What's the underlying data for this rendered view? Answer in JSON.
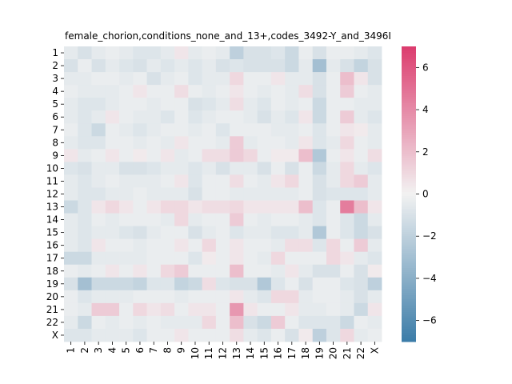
{
  "chart_data": {
    "type": "heatmap",
    "title": "female_chorion,conditions_none_and_13+,codes_3492-Y_and_3496I",
    "xlabel": "",
    "ylabel": "",
    "row_labels": [
      "1",
      "2",
      "3",
      "4",
      "5",
      "6",
      "7",
      "8",
      "9",
      "10",
      "11",
      "12",
      "13",
      "14",
      "15",
      "16",
      "17",
      "18",
      "19",
      "20",
      "21",
      "22",
      "X"
    ],
    "col_labels": [
      "1",
      "2",
      "3",
      "4",
      "5",
      "6",
      "7",
      "8",
      "9",
      "10",
      "11",
      "12",
      "13",
      "14",
      "15",
      "16",
      "17",
      "18",
      "19",
      "20",
      "21",
      "22",
      "X"
    ],
    "colorbar": {
      "vmin": -7,
      "vmax": 7,
      "ticks": [
        -6,
        -4,
        -2,
        0,
        2,
        4,
        6
      ],
      "tick_labels": [
        "−6",
        "−4",
        "−2",
        "0",
        "2",
        "4",
        "6"
      ],
      "low_color": "#3b7ca8",
      "mid_color": "#f2f2f2",
      "high_color": "#dc3c6e"
    },
    "values": [
      [
        -0.5,
        -1.0,
        -0.5,
        -0.3,
        -0.5,
        -0.8,
        -0.8,
        -0.5,
        0.5,
        -0.5,
        -0.3,
        -0.5,
        -2.0,
        -1.0,
        -1.0,
        -0.8,
        -1.5,
        -0.3,
        -1.0,
        -0.3,
        -0.3,
        -0.5,
        -0.8
      ],
      [
        -1.0,
        -0.3,
        -1.0,
        -0.5,
        -0.8,
        -1.0,
        -0.5,
        -0.8,
        -0.5,
        -0.8,
        -0.5,
        -1.0,
        -0.8,
        -1.0,
        -1.0,
        -1.0,
        -1.5,
        -0.5,
        -3.0,
        -0.5,
        -1.0,
        -1.8,
        -1.0
      ],
      [
        -0.5,
        -0.5,
        -0.3,
        -0.3,
        -0.5,
        -0.3,
        -1.0,
        -0.5,
        -0.3,
        -0.8,
        -0.5,
        -0.5,
        1.0,
        -0.3,
        -0.3,
        0.5,
        -0.5,
        -0.5,
        -1.0,
        -0.3,
        2.0,
        0.5,
        -1.0
      ],
      [
        -0.3,
        -0.5,
        -0.5,
        -0.5,
        -0.3,
        0.5,
        -0.3,
        -0.3,
        0.8,
        -0.3,
        -0.5,
        -0.3,
        0.5,
        -0.3,
        -0.5,
        -0.3,
        -0.5,
        0.8,
        -1.0,
        -0.3,
        1.5,
        -0.3,
        -0.5
      ],
      [
        -0.5,
        -0.8,
        -0.8,
        -0.5,
        -0.3,
        -0.3,
        -0.5,
        -0.3,
        -0.3,
        -1.0,
        -0.8,
        -0.5,
        0.8,
        -0.5,
        -0.8,
        -0.3,
        -0.5,
        -0.3,
        -1.5,
        -0.3,
        -0.3,
        -0.5,
        -0.5
      ],
      [
        -0.5,
        -0.8,
        -0.5,
        0.5,
        -0.3,
        -0.5,
        -0.5,
        -0.8,
        -0.3,
        -0.8,
        -0.5,
        -0.3,
        -0.3,
        -0.5,
        -1.0,
        -0.5,
        -0.8,
        0.5,
        -1.5,
        -0.3,
        1.5,
        -0.5,
        -0.8
      ],
      [
        -0.3,
        -0.8,
        -1.5,
        -0.3,
        -0.5,
        -0.8,
        -0.5,
        -0.3,
        -0.3,
        -0.5,
        -0.3,
        -0.8,
        -0.3,
        -0.3,
        -0.3,
        -0.5,
        -0.5,
        -0.3,
        -0.8,
        -0.3,
        0.5,
        0.3,
        -0.5
      ],
      [
        -0.5,
        -0.8,
        -0.8,
        -0.3,
        -0.3,
        -0.5,
        -0.3,
        -0.5,
        0.5,
        -0.3,
        -0.3,
        -0.5,
        1.5,
        -0.5,
        -0.3,
        -0.3,
        -0.5,
        0.5,
        -0.8,
        -0.5,
        1.0,
        -0.3,
        -0.5
      ],
      [
        0.5,
        -0.5,
        -0.3,
        0.5,
        -0.3,
        0.3,
        -0.3,
        0.5,
        -0.5,
        -0.3,
        0.8,
        0.8,
        1.5,
        1.0,
        -0.3,
        0.3,
        0.3,
        2.0,
        -2.5,
        -0.3,
        0.5,
        -0.3,
        0.8
      ],
      [
        -0.8,
        -1.0,
        -0.5,
        -0.5,
        -1.0,
        -1.0,
        -0.8,
        -0.5,
        -0.5,
        -0.8,
        -0.5,
        -1.0,
        -0.5,
        -0.5,
        -1.0,
        -0.3,
        -1.0,
        -0.3,
        -1.5,
        -0.5,
        1.0,
        -0.5,
        -0.8
      ],
      [
        -0.5,
        -0.8,
        -0.5,
        -0.3,
        -0.5,
        -0.5,
        -0.5,
        -0.3,
        0.5,
        -0.8,
        -0.3,
        -0.3,
        0.8,
        -0.3,
        -0.5,
        0.5,
        1.0,
        -0.3,
        -1.0,
        -0.5,
        1.0,
        1.5,
        -0.5
      ],
      [
        -0.5,
        -0.8,
        -0.8,
        -0.5,
        -0.5,
        -0.3,
        -0.5,
        -0.5,
        -0.5,
        -1.0,
        -0.3,
        -0.3,
        -0.5,
        -0.5,
        -0.5,
        -0.5,
        -0.5,
        -0.3,
        -1.0,
        -0.8,
        -0.8,
        -0.8,
        -0.5
      ],
      [
        -1.5,
        -0.8,
        0.5,
        1.0,
        0.5,
        -0.3,
        0.5,
        1.0,
        1.0,
        0.5,
        0.8,
        0.8,
        1.0,
        0.5,
        0.5,
        0.5,
        0.5,
        2.0,
        -0.8,
        -0.3,
        4.5,
        2.0,
        0.5
      ],
      [
        -0.5,
        -0.8,
        -0.3,
        -0.5,
        -0.3,
        -0.3,
        -0.3,
        -0.5,
        1.0,
        -0.5,
        -0.3,
        -0.3,
        1.5,
        -0.3,
        -0.5,
        -0.3,
        -0.3,
        -0.5,
        -0.8,
        -0.3,
        -0.8,
        -1.5,
        -0.5
      ],
      [
        -0.5,
        -0.8,
        -0.5,
        -0.5,
        -0.8,
        -1.0,
        -0.5,
        -0.3,
        -0.3,
        -1.0,
        -0.5,
        -0.3,
        -0.8,
        -0.5,
        -0.5,
        -0.8,
        -0.8,
        -0.5,
        -2.5,
        -0.3,
        -0.8,
        -1.5,
        -1.0
      ],
      [
        -0.5,
        -0.8,
        0.5,
        -0.3,
        -0.3,
        -0.5,
        -0.3,
        -0.3,
        0.5,
        -0.3,
        1.0,
        -0.3,
        0.5,
        -0.3,
        -0.3,
        -0.5,
        0.8,
        0.8,
        -0.8,
        1.0,
        -0.3,
        1.5,
        -0.5
      ],
      [
        -1.5,
        -1.5,
        -0.5,
        -0.5,
        -0.5,
        -0.5,
        -0.3,
        -0.3,
        -0.3,
        -0.8,
        0.3,
        -0.3,
        0.5,
        -0.3,
        -0.5,
        1.0,
        -0.3,
        -0.3,
        -0.3,
        1.0,
        0.5,
        -0.5,
        -0.8
      ],
      [
        -0.3,
        -0.5,
        -0.3,
        0.5,
        -0.3,
        0.5,
        -0.3,
        1.0,
        1.5,
        -0.3,
        -0.3,
        -0.3,
        2.0,
        -0.3,
        -0.3,
        -0.5,
        0.5,
        -0.5,
        -1.0,
        -1.0,
        -0.3,
        -1.0,
        0.3
      ],
      [
        -1.0,
        -3.0,
        -1.5,
        -1.5,
        -1.5,
        -1.8,
        -0.8,
        -0.8,
        -1.8,
        -1.5,
        0.8,
        -0.8,
        -1.0,
        -1.0,
        -2.5,
        -0.8,
        -0.3,
        -1.0,
        -0.3,
        -0.3,
        -0.8,
        -1.0,
        -2.0
      ],
      [
        -0.3,
        -0.8,
        -0.5,
        -0.5,
        -0.5,
        -0.3,
        -0.3,
        -0.3,
        -0.5,
        -0.3,
        -0.3,
        -0.3,
        0.5,
        -0.5,
        -0.8,
        1.0,
        1.0,
        -0.5,
        -0.3,
        -0.3,
        -0.5,
        -1.0,
        -0.5
      ],
      [
        -0.3,
        -0.5,
        1.5,
        1.5,
        -0.3,
        1.0,
        0.5,
        0.8,
        -0.3,
        0.5,
        0.5,
        -0.3,
        3.5,
        0.5,
        -0.3,
        -0.3,
        0.5,
        -0.5,
        -0.5,
        -0.3,
        -0.5,
        -1.5,
        0.5
      ],
      [
        -0.5,
        -1.5,
        -0.3,
        -0.5,
        -0.3,
        -0.5,
        -0.3,
        -0.5,
        -0.5,
        -0.5,
        1.0,
        -0.3,
        2.0,
        -1.0,
        -1.5,
        1.5,
        -0.3,
        -0.8,
        -0.8,
        -0.8,
        -1.5,
        -0.3,
        -0.5
      ],
      [
        -0.8,
        -0.8,
        -0.5,
        -0.5,
        -0.5,
        -0.8,
        -0.3,
        -0.3,
        0.5,
        -0.3,
        -0.3,
        -0.3,
        0.8,
        -0.5,
        -0.8,
        -0.3,
        -1.0,
        0.3,
        -2.0,
        -0.8,
        1.0,
        -0.5,
        -0.3
      ]
    ]
  }
}
